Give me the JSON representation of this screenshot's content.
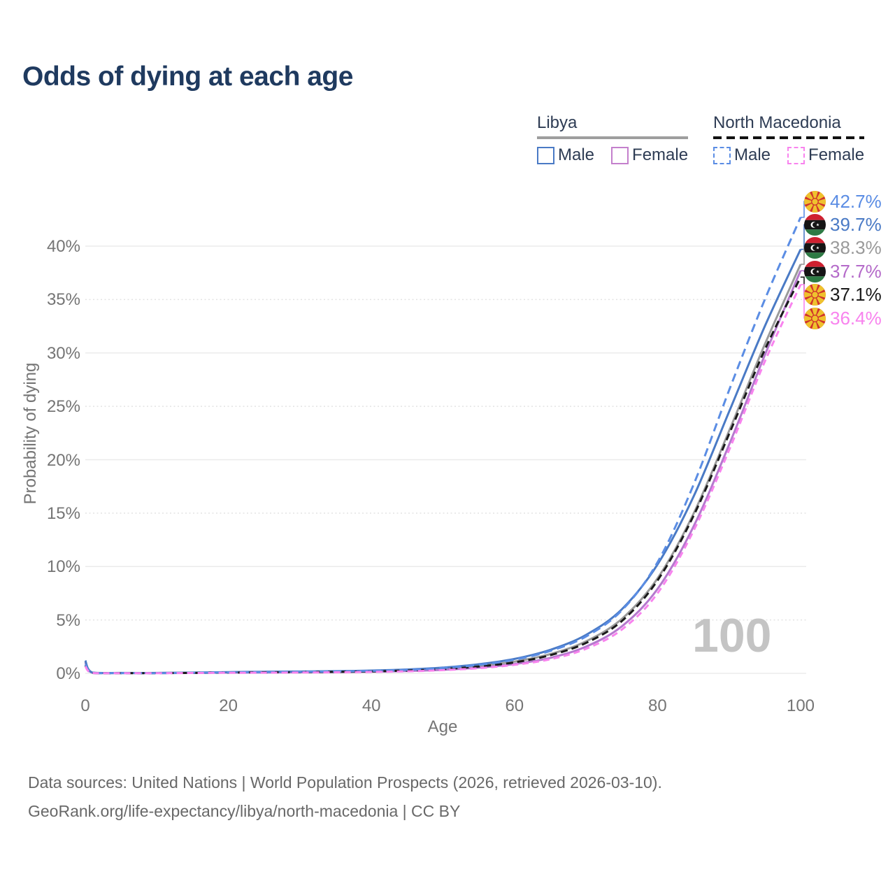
{
  "title": "Odds of dying at each age",
  "watermark": "100",
  "legend": {
    "groups": [
      {
        "name": "Libya",
        "line_style": "solid",
        "underline_color": "#9e9e9e",
        "items": [
          {
            "label": "Male",
            "color": "#4a7ac5"
          },
          {
            "label": "Female",
            "color": "#c480cc"
          }
        ]
      },
      {
        "name": "North Macedonia",
        "line_style": "dashed",
        "underline_color": "#111111",
        "items": [
          {
            "label": "Male",
            "color": "#5b8de4"
          },
          {
            "label": "Female",
            "color": "#f883ee"
          }
        ]
      }
    ]
  },
  "axes": {
    "x": {
      "label": "Age",
      "ticks": [
        "0",
        "20",
        "40",
        "60",
        "80",
        "100"
      ],
      "tick_values": [
        0,
        20,
        40,
        60,
        80,
        100
      ]
    },
    "y": {
      "label": "Probability of dying",
      "ticks": [
        "0%",
        "5%",
        "10%",
        "15%",
        "20%",
        "25%",
        "30%",
        "35%",
        "40%"
      ],
      "tick_values": [
        0,
        5,
        10,
        15,
        20,
        25,
        30,
        35,
        40
      ]
    }
  },
  "end_labels": [
    {
      "series": "nm-male",
      "flag": "north-macedonia",
      "value": "42.7%",
      "color": "#5b8de4"
    },
    {
      "series": "libya-male",
      "flag": "libya",
      "value": "39.7%",
      "color": "#4a7ac5"
    },
    {
      "series": "libya-both",
      "flag": "libya",
      "value": "38.3%",
      "color": "#9a9a9a"
    },
    {
      "series": "libya-female",
      "flag": "libya",
      "value": "37.7%",
      "color": "#b46ac9"
    },
    {
      "series": "nm-both",
      "flag": "north-macedonia",
      "value": "37.1%",
      "color": "#1a1a1a"
    },
    {
      "series": "nm-female",
      "flag": "north-macedonia",
      "value": "36.4%",
      "color": "#f883ee"
    }
  ],
  "footer": {
    "line1": "Data sources: United Nations | World Population Prospects (2026, retrieved 2026-03-10).",
    "line2": "GeoRank.org/life-expectancy/libya/north-macedonia | CC BY"
  },
  "chart_data": {
    "type": "line",
    "title": "Odds of dying at each age",
    "xlabel": "Age",
    "ylabel": "Probability of dying",
    "y_unit": "percent",
    "xlim": [
      0,
      100
    ],
    "ylim": [
      0,
      44
    ],
    "grid": "horizontal",
    "legend_position": "top-right",
    "x": [
      0,
      1,
      5,
      10,
      15,
      20,
      25,
      30,
      35,
      40,
      45,
      50,
      55,
      60,
      65,
      70,
      75,
      80,
      85,
      90,
      95,
      100
    ],
    "series": [
      {
        "id": "libya-both",
        "name": "Libya Both sexes",
        "color": "#9a9a9a",
        "dash": null,
        "width": 3,
        "end_value": 38.3,
        "values": [
          1.1,
          0.06,
          0.03,
          0.03,
          0.06,
          0.1,
          0.12,
          0.14,
          0.17,
          0.21,
          0.29,
          0.44,
          0.7,
          1.1,
          1.8,
          3.0,
          5.1,
          8.9,
          14.9,
          22.7,
          30.8,
          38.3
        ]
      },
      {
        "id": "libya-female",
        "name": "Libya Female",
        "color": "#b579ce",
        "dash": null,
        "width": 3,
        "end_value": 37.7,
        "values": [
          1.0,
          0.05,
          0.03,
          0.03,
          0.05,
          0.07,
          0.08,
          0.1,
          0.12,
          0.16,
          0.22,
          0.33,
          0.53,
          0.88,
          1.45,
          2.5,
          4.4,
          7.9,
          13.7,
          21.4,
          29.8,
          37.7
        ]
      },
      {
        "id": "libya-male",
        "name": "Libya Male",
        "color": "#4a7ac5",
        "dash": null,
        "width": 3,
        "end_value": 39.7,
        "values": [
          1.2,
          0.07,
          0.04,
          0.04,
          0.07,
          0.12,
          0.15,
          0.17,
          0.2,
          0.26,
          0.36,
          0.54,
          0.85,
          1.35,
          2.2,
          3.6,
          6.0,
          10.2,
          16.5,
          24.5,
          32.5,
          39.7
        ]
      },
      {
        "id": "nm-both",
        "name": "North Macedonia Both sexes",
        "color": "#1a1a1a",
        "dash": "10 6",
        "width": 3,
        "end_value": 37.1,
        "values": [
          0.75,
          0.03,
          0.02,
          0.02,
          0.04,
          0.07,
          0.09,
          0.11,
          0.14,
          0.18,
          0.26,
          0.4,
          0.64,
          1.03,
          1.7,
          2.85,
          4.9,
          8.7,
          14.7,
          22.4,
          30.3,
          37.1
        ]
      },
      {
        "id": "nm-male",
        "name": "North Macedonia Male",
        "color": "#5b8de4",
        "dash": "12 7",
        "width": 3,
        "end_value": 42.7,
        "values": [
          0.85,
          0.04,
          0.02,
          0.02,
          0.05,
          0.09,
          0.12,
          0.14,
          0.17,
          0.23,
          0.33,
          0.5,
          0.8,
          1.28,
          2.1,
          3.45,
          5.9,
          10.4,
          17.6,
          26.5,
          35.0,
          42.7
        ]
      },
      {
        "id": "nm-female",
        "name": "North Macedonia Female",
        "color": "#f883ee",
        "dash": "9 6",
        "width": 3,
        "end_value": 36.4,
        "values": [
          0.65,
          0.03,
          0.015,
          0.015,
          0.03,
          0.05,
          0.06,
          0.08,
          0.1,
          0.13,
          0.19,
          0.3,
          0.48,
          0.8,
          1.32,
          2.3,
          4.1,
          7.5,
          13.3,
          20.9,
          29.2,
          36.4
        ]
      }
    ]
  }
}
